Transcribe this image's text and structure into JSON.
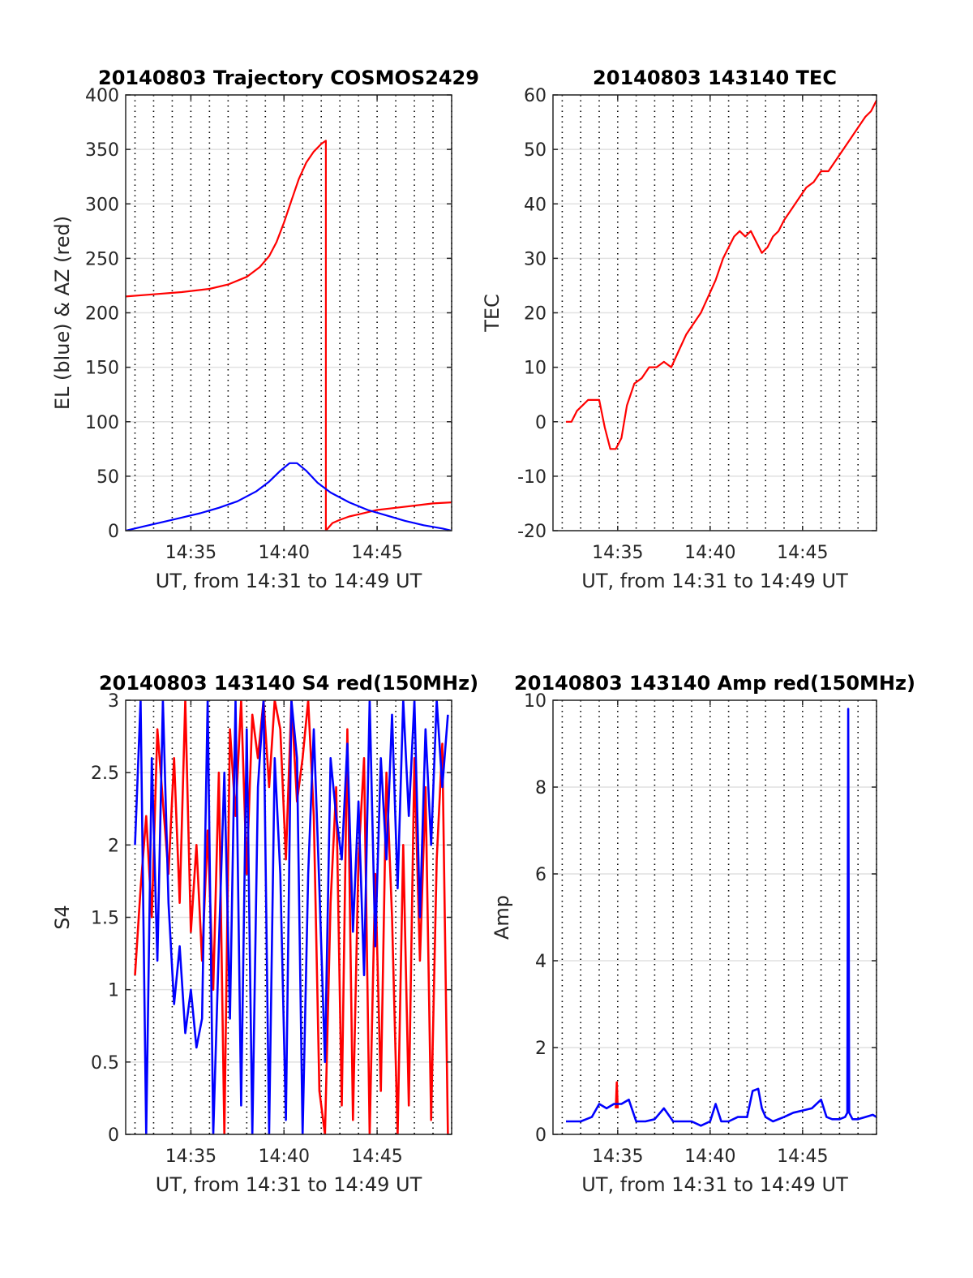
{
  "chart_data": [
    {
      "type": "line",
      "title": "20140803 Trajectory COSMOS2429",
      "xlabel": "UT, from 14:31 to 14:49 UT",
      "ylabel": "EL (blue) & AZ (red)",
      "xlim": [
        31.5,
        49.0
      ],
      "ylim": [
        0,
        400
      ],
      "xticks": [
        35,
        40,
        45
      ],
      "xtick_labels": [
        "14:35",
        "14:40",
        "14:45"
      ],
      "yticks": [
        0,
        50,
        100,
        150,
        200,
        250,
        300,
        350,
        400
      ],
      "ytick_labels": [
        "0",
        "50",
        "100",
        "150",
        "200",
        "250",
        "300",
        "350",
        "400"
      ],
      "grid_h": true,
      "grid_v_minute_dotted": true,
      "series": [
        {
          "color": "#ff0000",
          "x": [
            31.5,
            33,
            34.5,
            36,
            37,
            38,
            38.7,
            39.2,
            39.6,
            40,
            40.4,
            40.8,
            41.2,
            41.6,
            42,
            42.25,
            42.25,
            42.6,
            43,
            43.5,
            44,
            44.5,
            45,
            46,
            47,
            48,
            49
          ],
          "y": [
            215,
            217,
            219,
            222,
            226,
            233,
            242,
            252,
            265,
            283,
            303,
            323,
            338,
            348,
            355,
            358,
            0,
            7,
            10,
            13,
            15,
            17,
            19,
            21,
            23,
            25,
            26
          ]
        },
        {
          "color": "#0000ff",
          "x": [
            31.5,
            32.5,
            33.5,
            34.5,
            35.5,
            36.5,
            37.5,
            38.5,
            39.2,
            39.8,
            40.3,
            40.7,
            41.2,
            41.8,
            42.5,
            43.5,
            44.5,
            45.5,
            46.5,
            47.5,
            48.5,
            49
          ],
          "y": [
            0,
            4,
            8,
            12,
            16,
            21,
            27,
            36,
            45,
            55,
            62,
            62,
            55,
            44,
            35,
            26,
            19,
            14,
            9,
            5,
            2,
            0
          ]
        }
      ]
    },
    {
      "type": "line",
      "title": "20140803 143140 TEC",
      "xlabel": "UT, from 14:31 to 14:49 UT",
      "ylabel": "TEC",
      "xlim": [
        31.5,
        49.0
      ],
      "ylim": [
        -20,
        60
      ],
      "xticks": [
        35,
        40,
        45
      ],
      "xtick_labels": [
        "14:35",
        "14:40",
        "14:45"
      ],
      "yticks": [
        -20,
        -10,
        0,
        10,
        20,
        30,
        40,
        50,
        60
      ],
      "ytick_labels": [
        "-20",
        "-10",
        "0",
        "10",
        "20",
        "30",
        "40",
        "50",
        "60"
      ],
      "grid_h": true,
      "grid_v_minute_dotted": true,
      "series": [
        {
          "color": "#ff0000",
          "x": [
            32.2,
            32.5,
            32.8,
            33.1,
            33.4,
            33.7,
            34.0,
            34.3,
            34.6,
            34.9,
            35.2,
            35.5,
            35.9,
            36.3,
            36.7,
            37.1,
            37.5,
            37.9,
            38.3,
            38.7,
            39.1,
            39.5,
            39.9,
            40.3,
            40.7,
            41.0,
            41.3,
            41.6,
            41.9,
            42.2,
            42.5,
            42.8,
            43.1,
            43.4,
            43.7,
            44.0,
            44.4,
            44.8,
            45.2,
            45.6,
            46.0,
            46.4,
            46.8,
            47.2,
            47.6,
            48.0,
            48.4,
            48.7,
            49.0
          ],
          "y": [
            0,
            0,
            2,
            3,
            4,
            4,
            4,
            -1,
            -5,
            -5,
            -3,
            3,
            7,
            8,
            10,
            10,
            11,
            10,
            13,
            16,
            18,
            20,
            23,
            26,
            30,
            32,
            34,
            35,
            34,
            35,
            33,
            31,
            32,
            34,
            35,
            37,
            39,
            41,
            43,
            44,
            46,
            46,
            48,
            50,
            52,
            54,
            56,
            57,
            59
          ]
        }
      ]
    },
    {
      "type": "line",
      "title": "20140803 143140 S4 red(150MHz)",
      "xlabel": "UT, from 14:31 to 14:49 UT",
      "ylabel": "S4",
      "xlim": [
        31.5,
        49.0
      ],
      "ylim": [
        0,
        3
      ],
      "xticks": [
        35,
        40,
        45
      ],
      "xtick_labels": [
        "14:35",
        "14:40",
        "14:45"
      ],
      "yticks": [
        0,
        0.5,
        1,
        1.5,
        2,
        2.5,
        3
      ],
      "ytick_labels": [
        "0",
        "0.5",
        "1",
        "1.5",
        "2",
        "2.5",
        "3"
      ],
      "grid_h": true,
      "grid_v_minute_dotted": true,
      "series": [
        {
          "color": "#ff0000",
          "x": [
            32.0,
            32.3,
            32.6,
            32.9,
            33.2,
            33.5,
            33.8,
            34.1,
            34.4,
            34.7,
            35.0,
            35.3,
            35.6,
            35.9,
            36.2,
            36.5,
            36.8,
            37.1,
            37.4,
            37.7,
            38.0,
            38.3,
            38.6,
            38.9,
            39.2,
            39.5,
            39.8,
            40.1,
            40.4,
            40.7,
            41.0,
            41.3,
            41.6,
            41.9,
            42.2,
            42.5,
            42.8,
            43.1,
            43.4,
            43.7,
            44.0,
            44.3,
            44.6,
            44.9,
            45.2,
            45.5,
            45.8,
            46.1,
            46.4,
            46.7,
            47.0,
            47.3,
            47.6,
            47.9,
            48.2,
            48.5,
            48.8
          ],
          "y": [
            1.1,
            1.7,
            2.2,
            1.5,
            2.8,
            2.3,
            1.8,
            2.6,
            1.6,
            3.0,
            1.4,
            2.0,
            1.2,
            2.1,
            1.0,
            2.5,
            0.0,
            2.8,
            2.2,
            3.0,
            1.8,
            2.9,
            2.6,
            3.0,
            2.4,
            3.0,
            2.8,
            1.9,
            3.0,
            2.3,
            2.6,
            3.0,
            2.2,
            0.3,
            0.0,
            1.6,
            2.4,
            0.2,
            2.8,
            0.1,
            1.9,
            2.6,
            0.0,
            1.8,
            0.3,
            2.5,
            1.5,
            0.0,
            2.0,
            0.2,
            2.6,
            1.2,
            2.4,
            0.1,
            1.9,
            2.7,
            0.0
          ]
        },
        {
          "color": "#0000ff",
          "x": [
            32.0,
            32.3,
            32.6,
            32.9,
            33.2,
            33.5,
            33.8,
            34.1,
            34.4,
            34.7,
            35.0,
            35.3,
            35.6,
            35.9,
            36.2,
            36.5,
            36.8,
            37.1,
            37.4,
            37.7,
            38.0,
            38.3,
            38.6,
            38.9,
            39.2,
            39.5,
            39.8,
            40.1,
            40.4,
            40.7,
            41.0,
            41.3,
            41.6,
            41.9,
            42.2,
            42.5,
            42.8,
            43.1,
            43.4,
            43.7,
            44.0,
            44.3,
            44.6,
            44.9,
            45.2,
            45.5,
            45.8,
            46.1,
            46.4,
            46.7,
            47.0,
            47.3,
            47.6,
            47.9,
            48.2,
            48.5,
            48.8
          ],
          "y": [
            2.0,
            3.0,
            0.0,
            2.6,
            1.2,
            3.0,
            1.6,
            0.9,
            1.3,
            0.7,
            1.0,
            0.6,
            0.8,
            3.0,
            0.0,
            1.3,
            2.5,
            0.8,
            3.0,
            0.2,
            2.8,
            0.0,
            2.4,
            3.0,
            0.0,
            2.6,
            1.8,
            0.1,
            3.0,
            2.6,
            0.0,
            1.8,
            2.8,
            1.7,
            0.5,
            2.6,
            2.2,
            1.9,
            2.7,
            1.4,
            2.3,
            1.1,
            3.0,
            1.3,
            2.6,
            1.9,
            2.9,
            1.7,
            3.0,
            2.2,
            3.0,
            1.5,
            2.8,
            2.0,
            3.0,
            2.4,
            2.9
          ]
        }
      ]
    },
    {
      "type": "line",
      "title": "20140803 143140 Amp red(150MHz)",
      "xlabel": "UT, from 14:31 to 14:49 UT",
      "ylabel": "Amp",
      "xlim": [
        31.5,
        49.0
      ],
      "ylim": [
        0,
        10
      ],
      "xticks": [
        35,
        40,
        45
      ],
      "xtick_labels": [
        "14:35",
        "14:40",
        "14:45"
      ],
      "yticks": [
        0,
        2,
        4,
        6,
        8,
        10
      ],
      "ytick_labels": [
        "0",
        "2",
        "4",
        "6",
        "8",
        "10"
      ],
      "grid_h": true,
      "grid_v_minute_dotted": true,
      "series": [
        {
          "color": "#ff0000",
          "x": [
            34.9,
            34.95,
            35.0
          ],
          "y": [
            0.6,
            1.2,
            0.6
          ]
        },
        {
          "color": "#0000ff",
          "x": [
            32.2,
            32.6,
            33.0,
            33.3,
            33.6,
            34.0,
            34.4,
            34.8,
            35.2,
            35.6,
            36.0,
            36.5,
            37.0,
            37.5,
            38.0,
            38.5,
            39.0,
            39.5,
            40.0,
            40.3,
            40.6,
            41.0,
            41.5,
            42.0,
            42.3,
            42.6,
            42.8,
            43.0,
            43.4,
            44.0,
            44.5,
            45.0,
            45.5,
            46.0,
            46.3,
            46.6,
            47.0,
            47.3,
            47.42,
            47.47,
            47.52,
            47.7,
            48.0,
            48.4,
            48.8,
            49.0
          ],
          "y": [
            0.3,
            0.3,
            0.3,
            0.35,
            0.4,
            0.7,
            0.6,
            0.7,
            0.7,
            0.8,
            0.3,
            0.3,
            0.35,
            0.6,
            0.3,
            0.3,
            0.3,
            0.2,
            0.3,
            0.7,
            0.3,
            0.3,
            0.4,
            0.4,
            1.0,
            1.05,
            0.6,
            0.4,
            0.3,
            0.4,
            0.5,
            0.55,
            0.6,
            0.8,
            0.4,
            0.35,
            0.35,
            0.4,
            0.5,
            9.8,
            0.5,
            0.35,
            0.35,
            0.4,
            0.45,
            0.4
          ]
        }
      ]
    }
  ]
}
